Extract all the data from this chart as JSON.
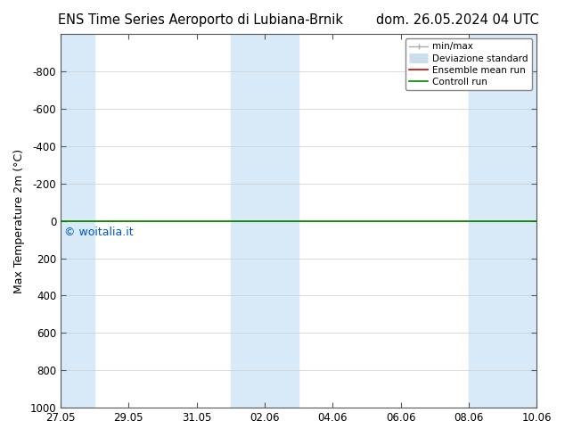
{
  "title_left": "ENS Time Series Aeroporto di Lubiana-Brnik",
  "title_right": "dom. 26.05.2024 04 UTC",
  "ylabel": "Max Temperature 2m (°C)",
  "watermark": "© woitalia.it",
  "watermark_color": "#0055cc",
  "background_color": "#ffffff",
  "plot_bg_color": "#ffffff",
  "ylim_top": -1000,
  "ylim_bottom": 1000,
  "yticks": [
    -800,
    -600,
    -400,
    -200,
    0,
    200,
    400,
    600,
    800,
    1000
  ],
  "x_start_days": 0,
  "x_end_days": 14,
  "x_tick_labels": [
    "27.05",
    "29.05",
    "31.05",
    "02.06",
    "04.06",
    "06.06",
    "08.06",
    "10.06"
  ],
  "x_tick_positions": [
    0,
    2,
    4,
    6,
    8,
    10,
    12,
    14
  ],
  "shaded_spans": [
    [
      0,
      1
    ],
    [
      5,
      6
    ],
    [
      6,
      7
    ],
    [
      12,
      13
    ],
    [
      13,
      14
    ]
  ],
  "shaded_color": "#d8eaf8",
  "line_y": 0,
  "line_color_control": "#008800",
  "line_color_ensemble": "#cc0000",
  "legend_items": [
    {
      "label": "min/max",
      "color": "#aaaaaa",
      "lw": 1.0,
      "type": "errorbar"
    },
    {
      "label": "Deviazione standard",
      "color": "#ccddee",
      "lw": 8,
      "type": "line"
    },
    {
      "label": "Ensemble mean run",
      "color": "#cc0000",
      "lw": 1.2,
      "type": "line"
    },
    {
      "label": "Controll run",
      "color": "#008800",
      "lw": 1.2,
      "type": "line"
    }
  ],
  "title_fontsize": 10.5,
  "axis_label_fontsize": 9,
  "tick_fontsize": 8.5,
  "watermark_fontsize": 9
}
